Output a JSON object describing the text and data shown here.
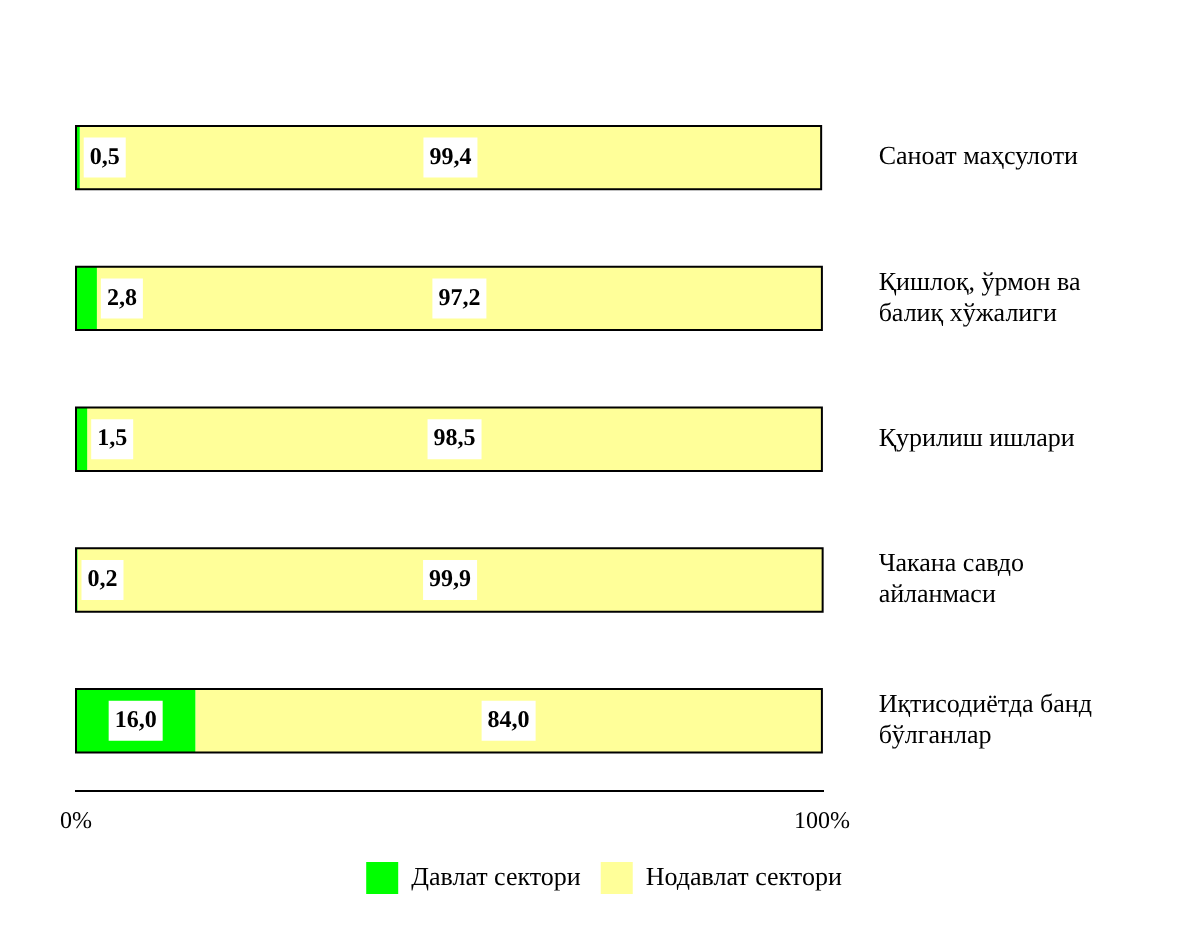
{
  "chart_data": {
    "type": "bar",
    "orientation": "horizontal",
    "stacked": true,
    "categories": [
      "Саноат маҳсулоти",
      "Қишлоқ, ўрмон ва балиқ хўжалиги",
      "Қурилиш ишлари",
      "Чакана савдо айланмаси",
      "Иқтисодиётда банд бўлганлар"
    ],
    "series": [
      {
        "name": "Давлат сектори",
        "color": "#00ff00",
        "values": [
          0.5,
          2.8,
          1.5,
          0.2,
          16.0
        ],
        "value_labels": [
          "0,5",
          "2,8",
          "1,5",
          "0,2",
          "16,0"
        ]
      },
      {
        "name": "Нодавлат сектори",
        "color": "#ffff99",
        "values": [
          99.4,
          97.2,
          98.5,
          99.9,
          84.0
        ],
        "value_labels": [
          "99,4",
          "97,2",
          "98,5",
          "99,9",
          "84,0"
        ]
      }
    ],
    "xlim": [
      0,
      100.1
    ],
    "xticks": [
      {
        "value": 0,
        "label": "0%"
      },
      {
        "value": 100,
        "label": "100%"
      }
    ],
    "grid": false,
    "legend": "bottom"
  }
}
